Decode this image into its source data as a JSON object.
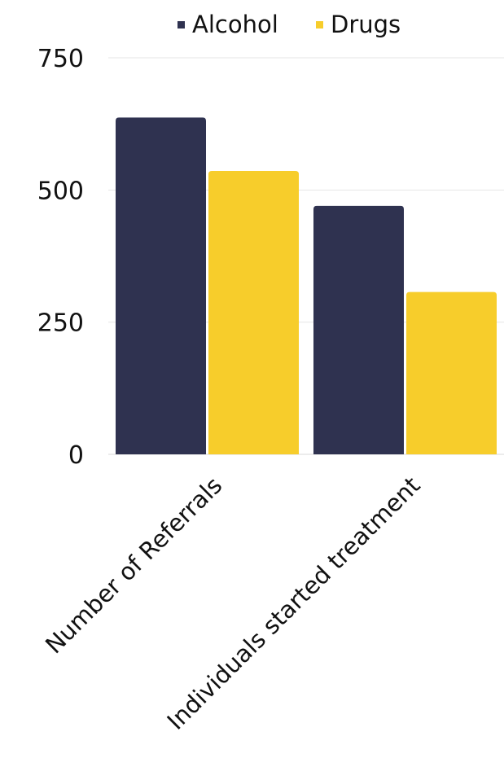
{
  "chart_data": {
    "type": "bar",
    "categories": [
      "Number of Referrals",
      "Individuals started treatment"
    ],
    "series": [
      {
        "name": "Alcohol",
        "values": [
          637,
          470
        ],
        "color": "#2f3250"
      },
      {
        "name": "Drugs",
        "values": [
          536,
          307
        ],
        "color": "#f7cd2b"
      }
    ],
    "ylim": [
      0,
      750
    ],
    "yticks": [
      0,
      250,
      500,
      750
    ],
    "grid": true,
    "legend_position": "top"
  }
}
